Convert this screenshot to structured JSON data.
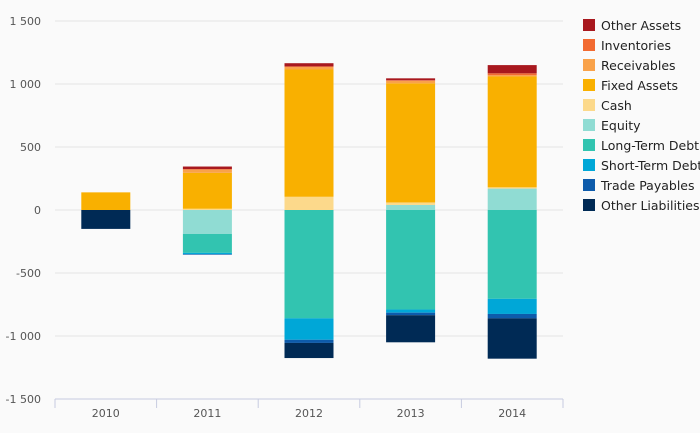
{
  "chart_data": {
    "type": "bar",
    "stacked": true,
    "categories": [
      "2010",
      "2011",
      "2012",
      "2013",
      "2014"
    ],
    "ylim": [
      -1500,
      1500
    ],
    "yticks": [
      {
        "value": 1500,
        "label": "1 500"
      },
      {
        "value": 1000,
        "label": "1 000"
      },
      {
        "value": 500,
        "label": "500"
      },
      {
        "value": 0,
        "label": "0"
      },
      {
        "value": -500,
        "label": "-500"
      },
      {
        "value": -1000,
        "label": "-1 000"
      },
      {
        "value": -1500,
        "label": "-1 500"
      }
    ],
    "grid": true,
    "legend_position": "right",
    "series": [
      {
        "name": "Other Assets",
        "color": "#a8181e",
        "values": [
          0,
          20,
          25,
          15,
          65
        ]
      },
      {
        "name": "Inventories",
        "color": "#f26a31",
        "values": [
          0,
          5,
          5,
          5,
          15
        ]
      },
      {
        "name": "Receivables",
        "color": "#f9a24a",
        "values": [
          0,
          25,
          20,
          20,
          10
        ]
      },
      {
        "name": "Fixed Assets",
        "color": "#f9b000",
        "values": [
          140,
          285,
          1010,
          945,
          880
        ]
      },
      {
        "name": "Cash",
        "color": "#fcd98b",
        "values": [
          0,
          10,
          105,
          20,
          10
        ]
      },
      {
        "name": "Equity",
        "color": "#90dcd3",
        "values": [
          0,
          -190,
          0,
          40,
          170
        ]
      },
      {
        "name": "Long-Term Debt",
        "color": "#32c4b0",
        "values": [
          0,
          -150,
          -860,
          -790,
          -705
        ]
      },
      {
        "name": "Short-Term Debt",
        "color": "#00a7d7",
        "values": [
          0,
          -10,
          -170,
          -25,
          -120
        ]
      },
      {
        "name": "Trade Payables",
        "color": "#0d5bab",
        "values": [
          0,
          -5,
          -25,
          -20,
          -35
        ]
      },
      {
        "name": "Other Liabilities",
        "color": "#002a55",
        "values": [
          -150,
          0,
          -120,
          -215,
          -320
        ]
      }
    ]
  }
}
